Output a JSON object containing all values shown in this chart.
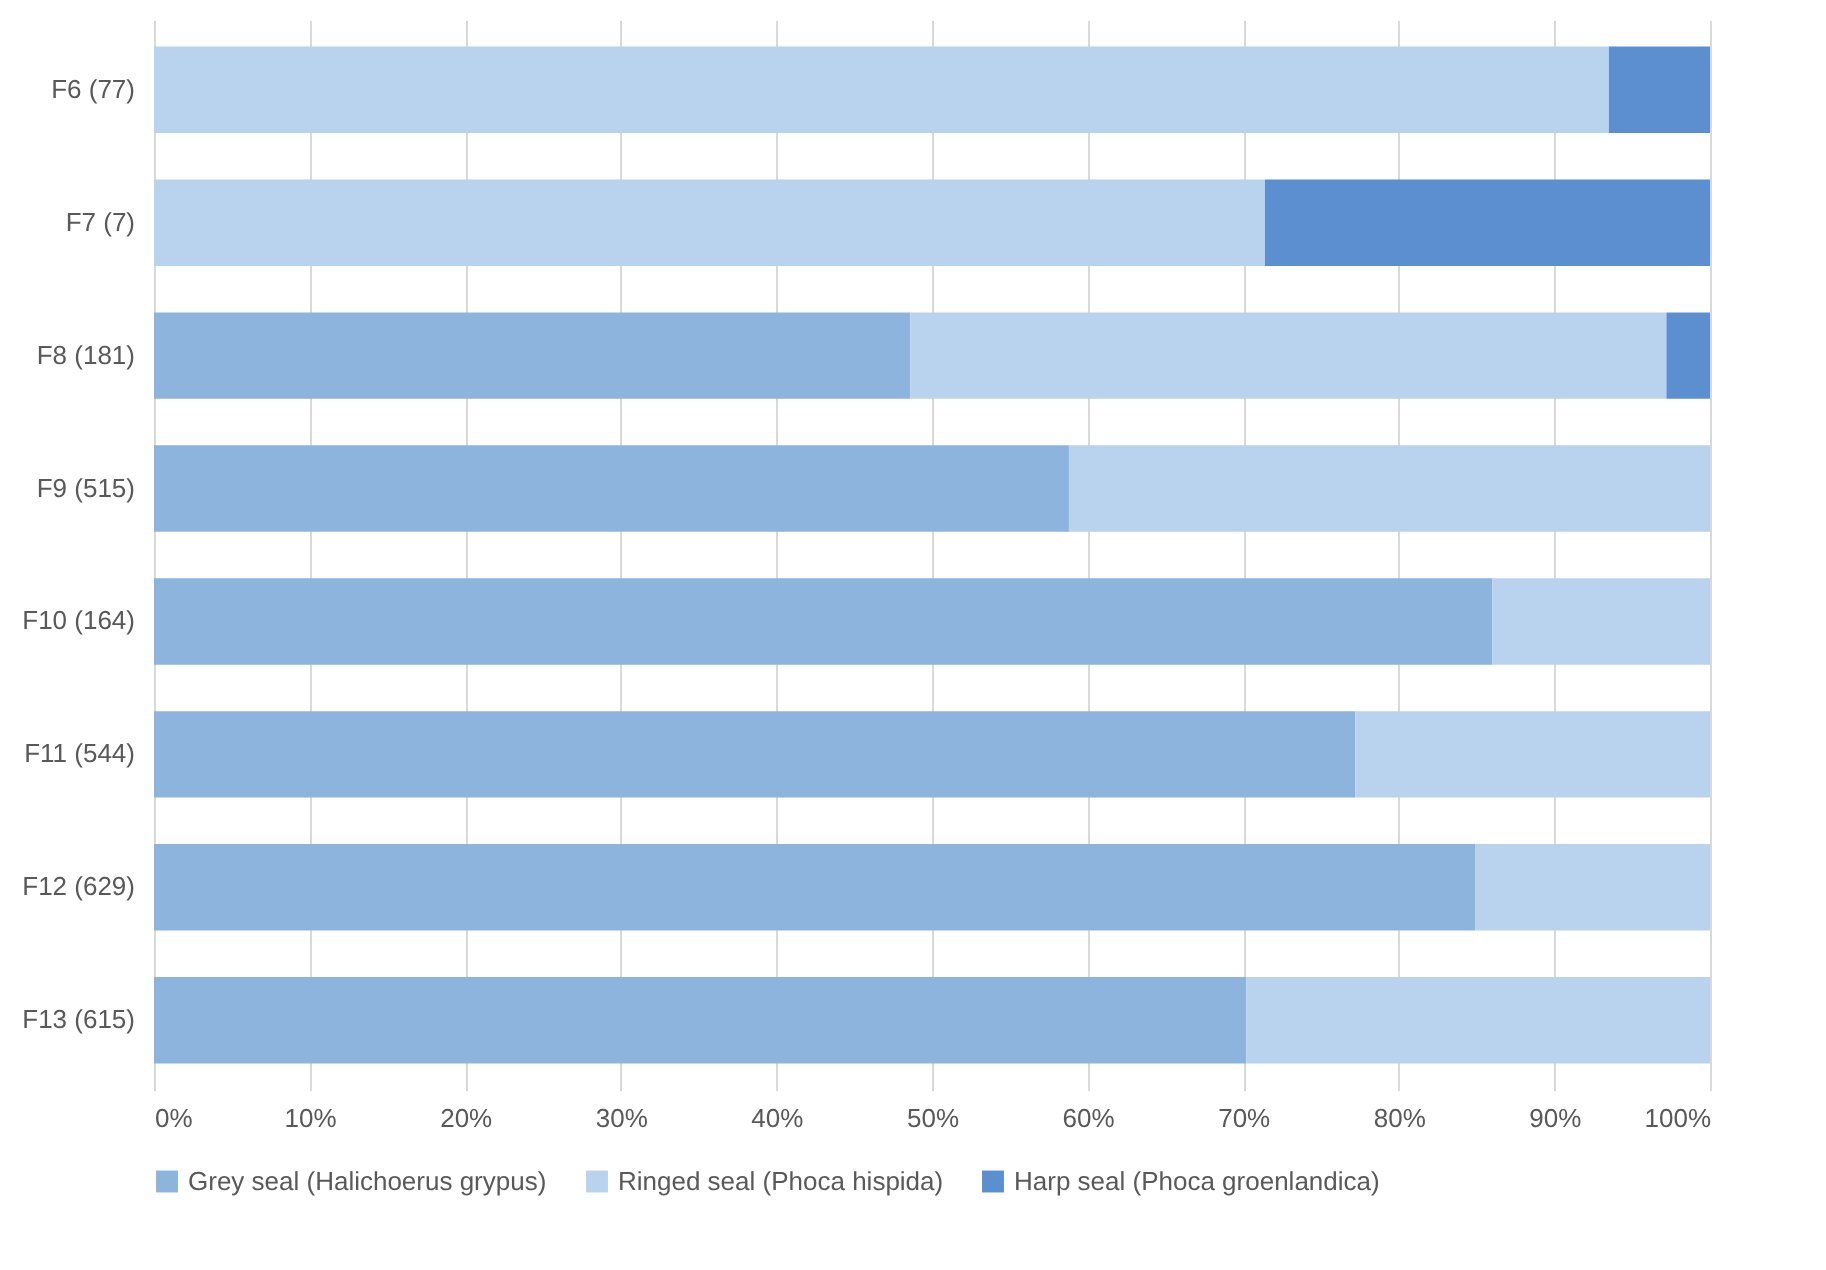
{
  "chart_data": {
    "type": "bar",
    "orientation": "horizontal",
    "stacked": true,
    "categories": [
      "F6 (77)",
      "F7 (7)",
      "F8 (181)",
      "F9 (515)",
      "F10 (164)",
      "F11 (544)",
      "F12 (629)",
      "F13 (615)"
    ],
    "series": [
      {
        "name": "Grey seal (Halichoerus grypus)",
        "color": "#8db4dc",
        "values": [
          0,
          0,
          48.6,
          58.8,
          86,
          77.2,
          84.9,
          70.2
        ]
      },
      {
        "name": "Ringed seal (Phoca hispida)",
        "color": "#b9d2ee",
        "values": [
          93.5,
          71.4,
          48.6,
          41.2,
          14,
          22.8,
          15.1,
          29.8
        ]
      },
      {
        "name": "Harp seal (Phoca groenlandica)",
        "color": "#5b8fd0",
        "values": [
          6.5,
          28.6,
          2.8,
          0,
          0,
          0,
          0,
          0
        ]
      }
    ],
    "xlim": [
      0,
      100
    ],
    "xticks": [
      {
        "value": 0,
        "label": "0%"
      },
      {
        "value": 10,
        "label": "10%"
      },
      {
        "value": 20,
        "label": "20%"
      },
      {
        "value": 30,
        "label": "30%"
      },
      {
        "value": 40,
        "label": "40%"
      },
      {
        "value": 50,
        "label": "50%"
      },
      {
        "value": 60,
        "label": "60%"
      },
      {
        "value": 70,
        "label": "70%"
      },
      {
        "value": 80,
        "label": "80%"
      },
      {
        "value": 90,
        "label": "90%"
      },
      {
        "value": 100,
        "label": "100%"
      }
    ],
    "grid": "x",
    "legend": "bottom"
  }
}
